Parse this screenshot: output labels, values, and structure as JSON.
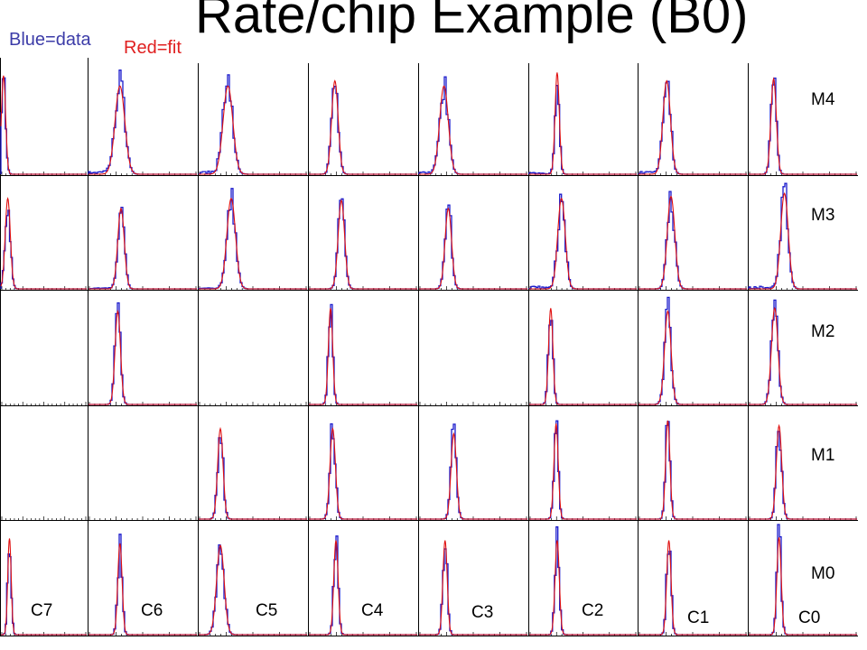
{
  "title": "Rate/chip Example (B0)",
  "legend": {
    "data_label": "Blue=data",
    "fit_label": "Red=fit"
  },
  "colors": {
    "data": "#1a1acc",
    "fit": "#e01010",
    "frame": "#000000"
  },
  "row_labels": [
    "M4",
    "M3",
    "M2",
    "M1",
    "M0"
  ],
  "col_labels": [
    "C7",
    "C6",
    "C5",
    "C4",
    "C3",
    "C2",
    "C1",
    "C0"
  ],
  "chart_data": {
    "type": "histogram-grid",
    "rows": [
      "M4",
      "M3",
      "M2",
      "M1",
      "M0"
    ],
    "columns": [
      "C7",
      "C6",
      "C5",
      "C4",
      "C3",
      "C2",
      "C1",
      "C0"
    ],
    "series": [
      {
        "name": "data",
        "style": "step"
      },
      {
        "name": "fit",
        "style": "gaussian"
      }
    ],
    "panels": [
      {
        "row": "M4",
        "col": "C7",
        "peak": 0.03,
        "width": 0.025,
        "height": 0.95,
        "tail": 0.0
      },
      {
        "row": "M4",
        "col": "C6",
        "peak": 0.29,
        "width": 0.045,
        "height": 0.85,
        "tail": 0.06
      },
      {
        "row": "M4",
        "col": "C5",
        "peak": 0.27,
        "width": 0.045,
        "height": 0.85,
        "tail": 0.08
      },
      {
        "row": "M4",
        "col": "C4",
        "peak": 0.24,
        "width": 0.03,
        "height": 0.9,
        "tail": 0.0
      },
      {
        "row": "M4",
        "col": "C3",
        "peak": 0.23,
        "width": 0.04,
        "height": 0.85,
        "tail": 0.05
      },
      {
        "row": "M4",
        "col": "C2",
        "peak": 0.26,
        "width": 0.02,
        "height": 0.98,
        "tail": 0.03
      },
      {
        "row": "M4",
        "col": "C1",
        "peak": 0.26,
        "width": 0.035,
        "height": 0.9,
        "tail": 0.05
      },
      {
        "row": "M4",
        "col": "C0",
        "peak": 0.23,
        "width": 0.025,
        "height": 0.92,
        "tail": 0.0
      },
      {
        "row": "M3",
        "col": "C7",
        "peak": 0.08,
        "width": 0.03,
        "height": 0.9,
        "tail": 0.0
      },
      {
        "row": "M3",
        "col": "C6",
        "peak": 0.3,
        "width": 0.03,
        "height": 0.8,
        "tail": 0.02
      },
      {
        "row": "M3",
        "col": "C5",
        "peak": 0.3,
        "width": 0.04,
        "height": 0.9,
        "tail": 0.02
      },
      {
        "row": "M3",
        "col": "C4",
        "peak": 0.3,
        "width": 0.03,
        "height": 0.88,
        "tail": 0.0
      },
      {
        "row": "M3",
        "col": "C3",
        "peak": 0.27,
        "width": 0.03,
        "height": 0.8,
        "tail": 0.0
      },
      {
        "row": "M3",
        "col": "C2",
        "peak": 0.3,
        "width": 0.035,
        "height": 0.9,
        "tail": 0.05
      },
      {
        "row": "M3",
        "col": "C1",
        "peak": 0.3,
        "width": 0.035,
        "height": 0.92,
        "tail": 0.0
      },
      {
        "row": "M3",
        "col": "C0",
        "peak": 0.33,
        "width": 0.035,
        "height": 0.95,
        "tail": 0.05
      },
      {
        "row": "M2",
        "col": "C7",
        "peak": 0.0,
        "width": 0.0,
        "height": 0.0,
        "tail": 0.0
      },
      {
        "row": "M2",
        "col": "C6",
        "peak": 0.27,
        "width": 0.025,
        "height": 0.92,
        "tail": 0.0
      },
      {
        "row": "M2",
        "col": "C5",
        "peak": 0.0,
        "width": 0.0,
        "height": 0.0,
        "tail": 0.0
      },
      {
        "row": "M2",
        "col": "C4",
        "peak": 0.2,
        "width": 0.02,
        "height": 0.95,
        "tail": 0.0
      },
      {
        "row": "M2",
        "col": "C3",
        "peak": 0.0,
        "width": 0.0,
        "height": 0.0,
        "tail": 0.0
      },
      {
        "row": "M2",
        "col": "C2",
        "peak": 0.2,
        "width": 0.02,
        "height": 0.95,
        "tail": 0.0
      },
      {
        "row": "M2",
        "col": "C1",
        "peak": 0.27,
        "width": 0.03,
        "height": 0.92,
        "tail": 0.0
      },
      {
        "row": "M2",
        "col": "C0",
        "peak": 0.24,
        "width": 0.03,
        "height": 0.95,
        "tail": 0.0
      },
      {
        "row": "M1",
        "col": "C7",
        "peak": 0.0,
        "width": 0.0,
        "height": 0.0,
        "tail": 0.0
      },
      {
        "row": "M1",
        "col": "C6",
        "peak": 0.0,
        "width": 0.0,
        "height": 0.0,
        "tail": 0.0
      },
      {
        "row": "M1",
        "col": "C5",
        "peak": 0.2,
        "width": 0.025,
        "height": 0.9,
        "tail": 0.0
      },
      {
        "row": "M1",
        "col": "C4",
        "peak": 0.22,
        "width": 0.025,
        "height": 0.9,
        "tail": 0.0
      },
      {
        "row": "M1",
        "col": "C3",
        "peak": 0.32,
        "width": 0.025,
        "height": 0.85,
        "tail": 0.0
      },
      {
        "row": "M1",
        "col": "C2",
        "peak": 0.25,
        "width": 0.02,
        "height": 0.95,
        "tail": 0.0
      },
      {
        "row": "M1",
        "col": "C1",
        "peak": 0.27,
        "width": 0.02,
        "height": 0.98,
        "tail": 0.0
      },
      {
        "row": "M1",
        "col": "C0",
        "peak": 0.28,
        "width": 0.025,
        "height": 0.93,
        "tail": 0.0
      },
      {
        "row": "M0",
        "col": "C7",
        "peak": 0.1,
        "width": 0.02,
        "height": 0.95,
        "tail": 0.0
      },
      {
        "row": "M0",
        "col": "C6",
        "peak": 0.29,
        "width": 0.02,
        "height": 0.9,
        "tail": 0.0
      },
      {
        "row": "M0",
        "col": "C5",
        "peak": 0.2,
        "width": 0.035,
        "height": 0.88,
        "tail": 0.0
      },
      {
        "row": "M0",
        "col": "C4",
        "peak": 0.25,
        "width": 0.02,
        "height": 0.93,
        "tail": 0.0
      },
      {
        "row": "M0",
        "col": "C3",
        "peak": 0.24,
        "width": 0.02,
        "height": 0.93,
        "tail": 0.0
      },
      {
        "row": "M0",
        "col": "C2",
        "peak": 0.26,
        "width": 0.02,
        "height": 0.93,
        "tail": 0.0
      },
      {
        "row": "M0",
        "col": "C1",
        "peak": 0.28,
        "width": 0.02,
        "height": 0.93,
        "tail": 0.0
      },
      {
        "row": "M0",
        "col": "C0",
        "peak": 0.28,
        "width": 0.02,
        "height": 0.96,
        "tail": 0.0
      }
    ]
  }
}
